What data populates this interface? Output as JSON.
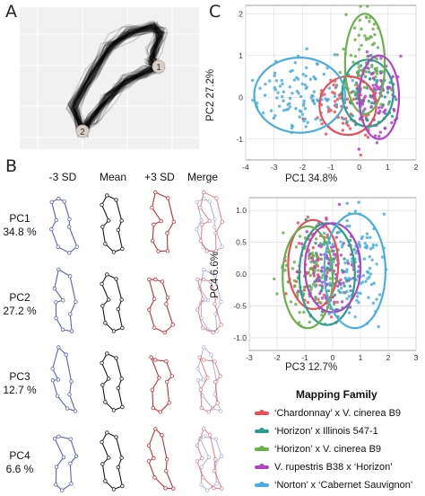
{
  "panel_letters": {
    "a": "A",
    "b": "B",
    "c": "C"
  },
  "panel_a": {
    "landmark_labels": [
      "1",
      "2"
    ]
  },
  "panel_b": {
    "column_headers": [
      "-3 SD",
      "Mean",
      "+3 SD",
      "Merge"
    ],
    "row_labels": [
      {
        "line1": "PC1",
        "line2": "34.8 %"
      },
      {
        "line1": "PC2",
        "line2": "27.2 %"
      },
      {
        "line1": "PC3",
        "line2": "12.7 %"
      },
      {
        "line1": "PC4",
        "line2": "6.6 %"
      }
    ],
    "colors": {
      "minus": "#5a63b0",
      "mean": "#1a1a1a",
      "plus": "#c0303a"
    }
  },
  "legend": {
    "title": "Mapping Family",
    "entries": [
      {
        "text": "‘Chardonnay’ x V. cinerea B9",
        "color": "#e8505b"
      },
      {
        "text": "‘Horizon’ x Illinois 547-1",
        "color": "#2a9d8f"
      },
      {
        "text": "‘Horizon’ x V. cinerea B9",
        "color": "#6ab04c"
      },
      {
        "text": "V. rupestris B38 x ‘Horizon’",
        "color": "#b044c8"
      },
      {
        "text": "‘Norton’ x ‘Cabernet Sauvignon’",
        "color": "#4aaee0"
      }
    ]
  },
  "chart_data": [
    {
      "type": "scatter",
      "xlabel": "PC1 34.8%",
      "ylabel": "PC2 27.2%",
      "xlim": [
        -4,
        2
      ],
      "ylim": [
        -1.5,
        2.2
      ],
      "x_ticks": [
        "-4",
        "-3",
        "-2",
        "-1",
        "0",
        "1",
        "2"
      ],
      "y_ticks": [
        "-1",
        "0",
        "1",
        "2"
      ],
      "grid": true,
      "series": [
        {
          "name": "‘Chardonnay’ x V. cinerea B9",
          "center": [
            -0.4,
            -0.2
          ],
          "spread": [
            0.5,
            0.35
          ]
        },
        {
          "name": "‘Horizon’ x Illinois 547-1",
          "center": [
            0.3,
            0.1
          ],
          "spread": [
            0.45,
            0.4
          ]
        },
        {
          "name": "‘Horizon’ x V. cinerea B9",
          "center": [
            0.2,
            0.8
          ],
          "spread": [
            0.35,
            0.6
          ]
        },
        {
          "name": "V. rupestris B38 x ‘Horizon’",
          "center": [
            0.7,
            0.0
          ],
          "spread": [
            0.35,
            0.5
          ]
        },
        {
          "name": "‘Norton’ x ‘Cabernet Sauvignon’",
          "center": [
            -2.1,
            0.05
          ],
          "spread": [
            0.8,
            0.45
          ]
        }
      ]
    },
    {
      "type": "scatter",
      "xlabel": "PC3 12.7%",
      "ylabel": "PC4 6.6%",
      "xlim": [
        -3,
        3
      ],
      "ylim": [
        -1.2,
        1.2
      ],
      "x_ticks": [
        "-3",
        "-2",
        "-1",
        "0",
        "1",
        "2",
        "3"
      ],
      "y_ticks": [
        "-1.0",
        "-0.5",
        "0.0",
        "0.5",
        "1.0"
      ],
      "grid": true,
      "series": [
        {
          "name": "‘Chardonnay’ x V. cinerea B9",
          "center": [
            -0.7,
            0.15
          ],
          "spread": [
            0.45,
            0.35
          ]
        },
        {
          "name": "‘Horizon’ x Illinois 547-1",
          "center": [
            -0.2,
            0.0
          ],
          "spread": [
            0.5,
            0.4
          ]
        },
        {
          "name": "‘Horizon’ x V. cinerea B9",
          "center": [
            -0.9,
            -0.05
          ],
          "spread": [
            0.45,
            0.4
          ]
        },
        {
          "name": "V. rupestris B38 x ‘Horizon’",
          "center": [
            0.0,
            0.1
          ],
          "spread": [
            0.5,
            0.35
          ]
        },
        {
          "name": "‘Norton’ x ‘Cabernet Sauvignon’",
          "center": [
            0.8,
            0.05
          ],
          "spread": [
            0.55,
            0.45
          ]
        }
      ]
    }
  ]
}
